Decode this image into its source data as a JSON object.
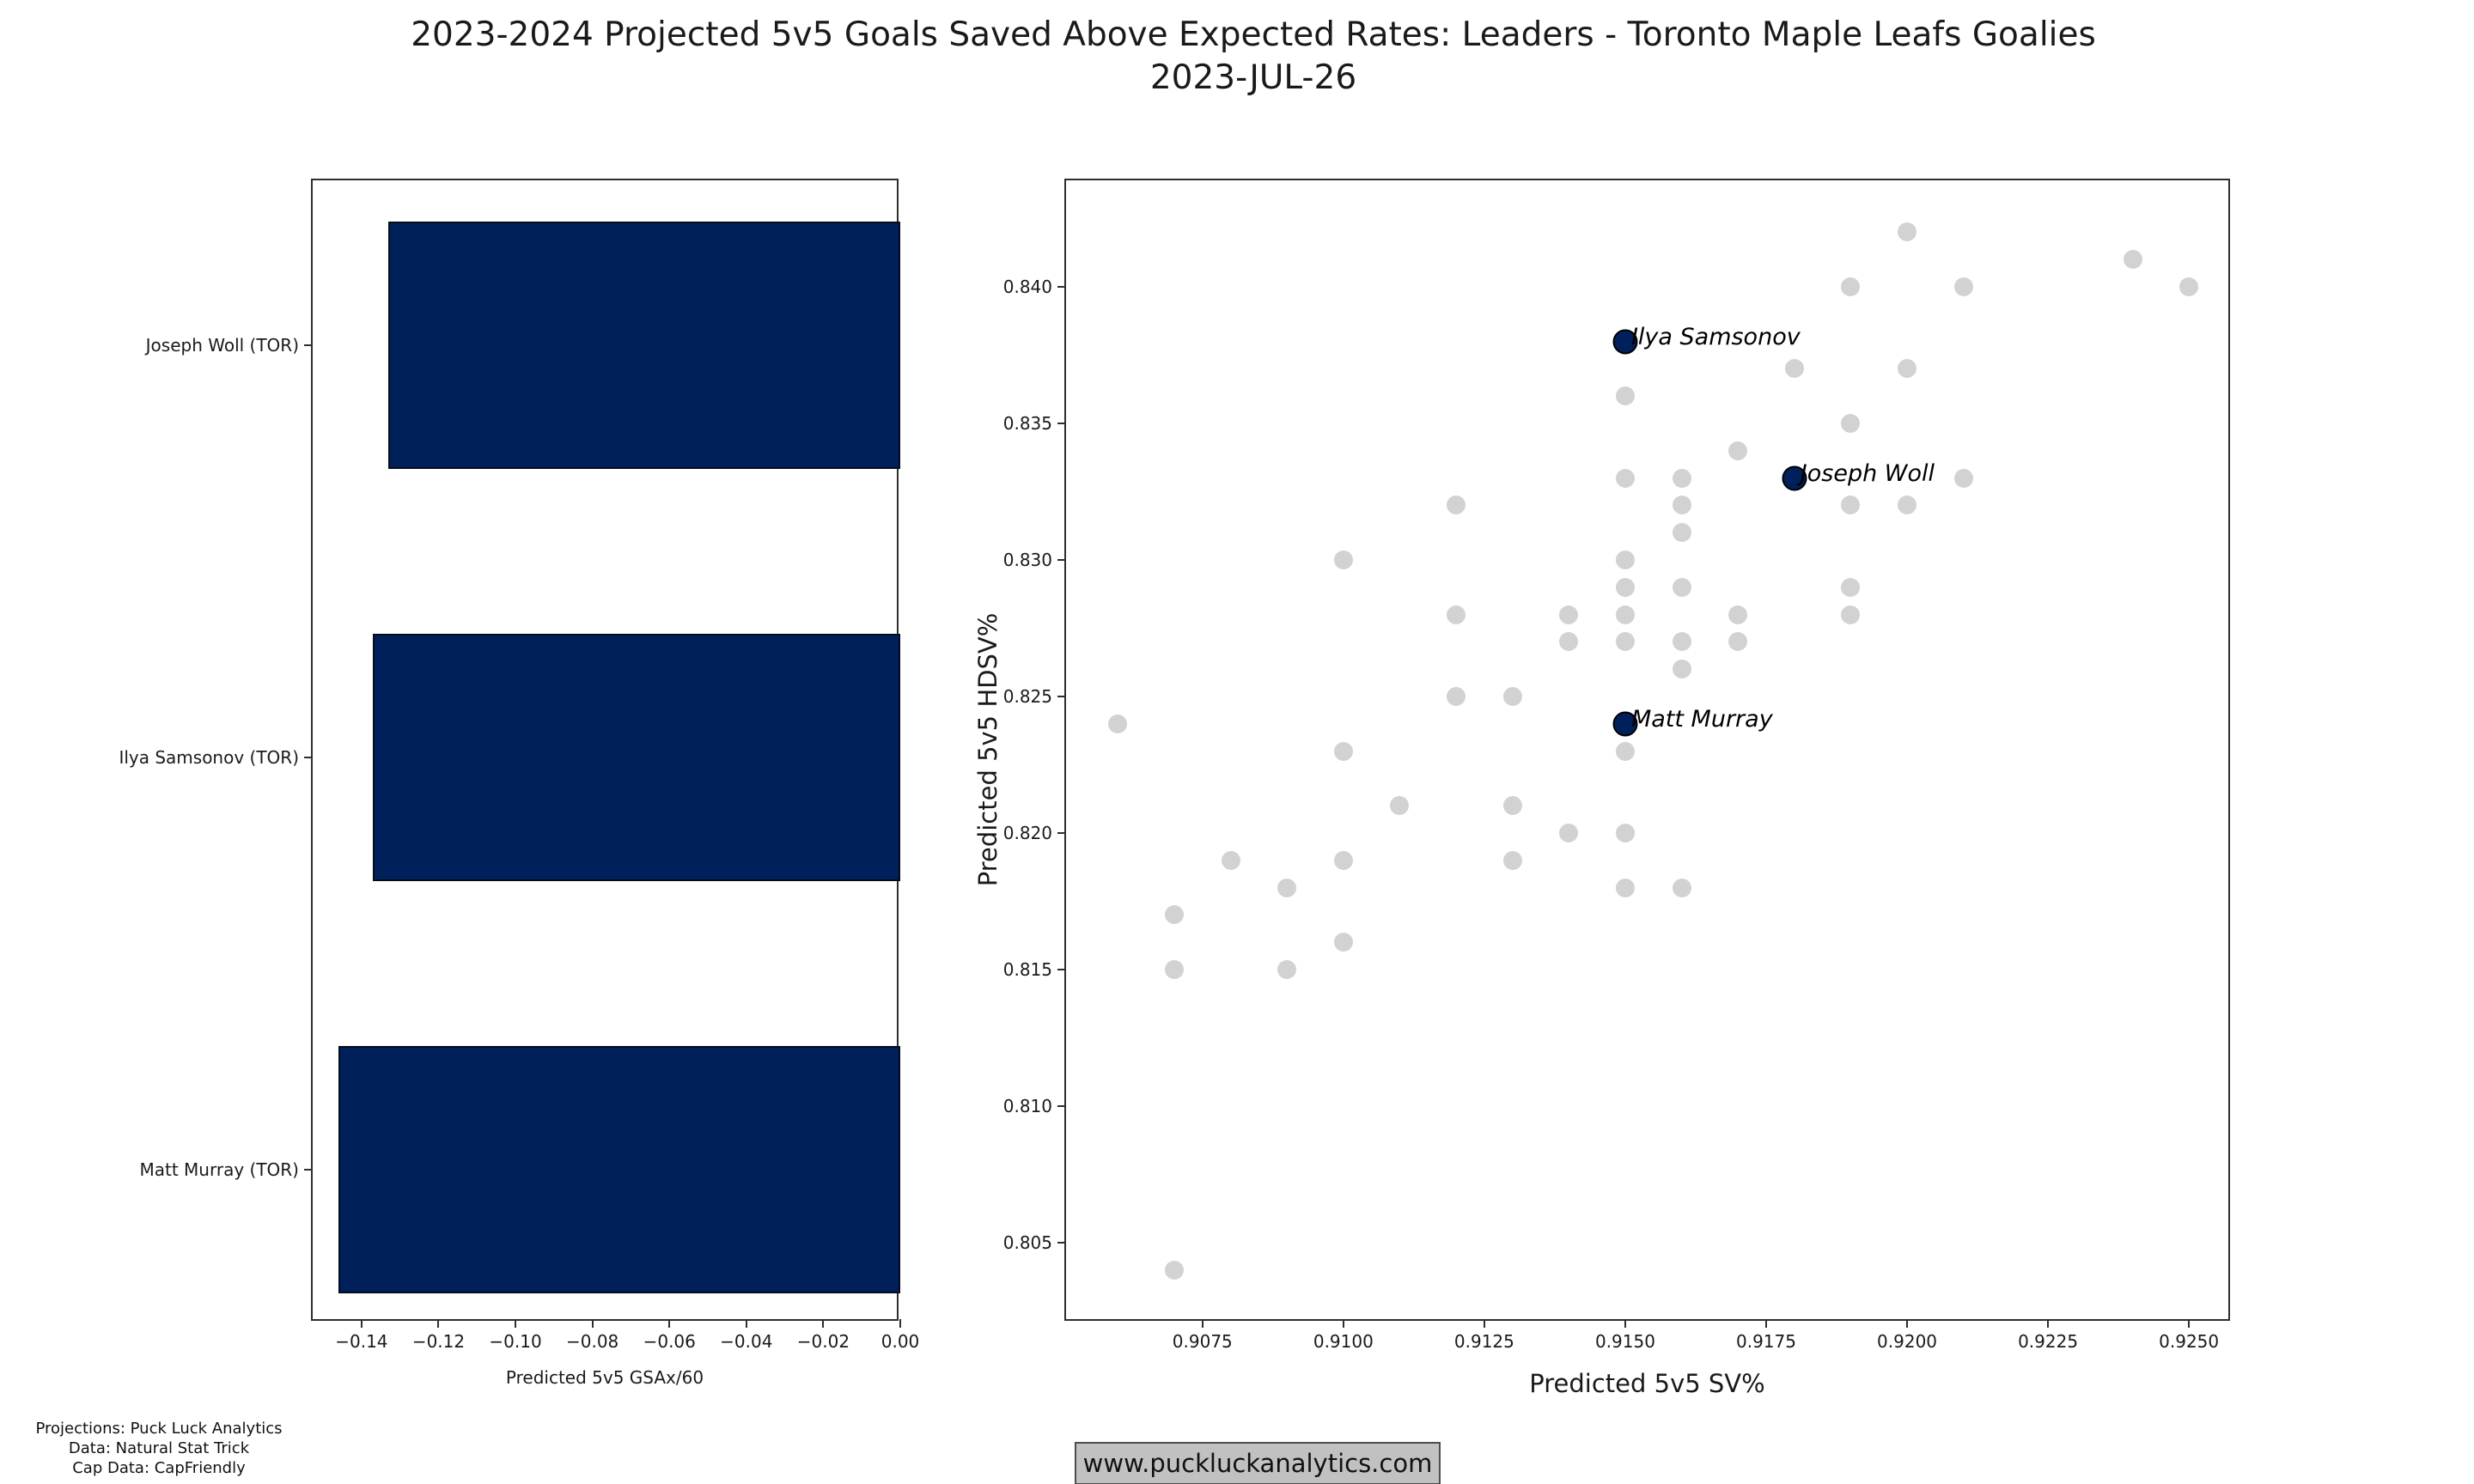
{
  "title": {
    "line1": "2023-2024 Projected 5v5 Goals Saved Above Expected Rates: Leaders - Toronto Maple Leafs Goalies",
    "line2": "2023-JUL-26"
  },
  "footer": {
    "lines": [
      "Projections: Puck Luck Analytics",
      "Data: Natural Stat Trick",
      "Cap Data: CapFriendly"
    ]
  },
  "watermark": {
    "text": "www.puckluckanalytics.com"
  },
  "colors": {
    "navy": "#00205b",
    "gray_dot": "#d2d2d2",
    "spine": "#2e2e2e",
    "watermark_bg": "#c1c1c1",
    "watermark_border": "#4d4d4d"
  },
  "chart_data": [
    {
      "type": "bar",
      "orientation": "horizontal",
      "xlabel": "Predicted 5v5 GSAx/60",
      "ylabel": "",
      "xlim": [
        -0.1527,
        0
      ],
      "grid": false,
      "bar_color": "#00205b",
      "categories": [
        "Joseph Woll (TOR)",
        "Ilya Samsonov (TOR)",
        "Matt Murray (TOR)"
      ],
      "values": [
        -0.133,
        -0.137,
        -0.146
      ],
      "xticks": [
        {
          "v": -0.14,
          "label": "−0.14"
        },
        {
          "v": -0.12,
          "label": "−0.12"
        },
        {
          "v": -0.1,
          "label": "−0.10"
        },
        {
          "v": -0.08,
          "label": "−0.08"
        },
        {
          "v": -0.06,
          "label": "−0.06"
        },
        {
          "v": -0.04,
          "label": "−0.04"
        },
        {
          "v": -0.02,
          "label": "−0.02"
        },
        {
          "v": 0.0,
          "label": "0.00"
        }
      ]
    },
    {
      "type": "scatter",
      "xlabel": "Predicted 5v5 SV%",
      "ylabel": "Predicted 5v5 HDSV%",
      "xlim": [
        0.90508,
        0.92576
      ],
      "ylim": [
        0.80208,
        0.8439
      ],
      "grid": false,
      "point_color_background": "#d2d2d2",
      "point_color_highlight": "#00205b",
      "xticks": [
        {
          "v": 0.9075,
          "label": "0.9075"
        },
        {
          "v": 0.91,
          "label": "0.9100"
        },
        {
          "v": 0.9125,
          "label": "0.9125"
        },
        {
          "v": 0.915,
          "label": "0.9150"
        },
        {
          "v": 0.9175,
          "label": "0.9175"
        },
        {
          "v": 0.92,
          "label": "0.9200"
        },
        {
          "v": 0.9225,
          "label": "0.9225"
        },
        {
          "v": 0.925,
          "label": "0.9250"
        }
      ],
      "yticks": [
        {
          "v": 0.84,
          "label": "0.840"
        },
        {
          "v": 0.835,
          "label": "0.835"
        },
        {
          "v": 0.83,
          "label": "0.830"
        },
        {
          "v": 0.825,
          "label": "0.825"
        },
        {
          "v": 0.82,
          "label": "0.820"
        },
        {
          "v": 0.815,
          "label": "0.815"
        },
        {
          "v": 0.81,
          "label": "0.810"
        },
        {
          "v": 0.805,
          "label": "0.805"
        }
      ],
      "labeled_points": [
        {
          "name": "Ilya Samsonov",
          "x": 0.915,
          "y": 0.838
        },
        {
          "name": "Joseph Woll",
          "x": 0.918,
          "y": 0.833
        },
        {
          "name": "Matt Murray",
          "x": 0.915,
          "y": 0.824
        }
      ],
      "background_points": [
        [
          0.906,
          0.824
        ],
        [
          0.907,
          0.817
        ],
        [
          0.907,
          0.815
        ],
        [
          0.907,
          0.804
        ],
        [
          0.908,
          0.819
        ],
        [
          0.909,
          0.818
        ],
        [
          0.909,
          0.815
        ],
        [
          0.91,
          0.83
        ],
        [
          0.91,
          0.823
        ],
        [
          0.91,
          0.819
        ],
        [
          0.91,
          0.816
        ],
        [
          0.911,
          0.821
        ],
        [
          0.912,
          0.832
        ],
        [
          0.912,
          0.828
        ],
        [
          0.912,
          0.825
        ],
        [
          0.913,
          0.825
        ],
        [
          0.913,
          0.821
        ],
        [
          0.913,
          0.819
        ],
        [
          0.914,
          0.828
        ],
        [
          0.914,
          0.827
        ],
        [
          0.914,
          0.82
        ],
        [
          0.915,
          0.836
        ],
        [
          0.915,
          0.833
        ],
        [
          0.915,
          0.83
        ],
        [
          0.915,
          0.829
        ],
        [
          0.915,
          0.828
        ],
        [
          0.915,
          0.827
        ],
        [
          0.915,
          0.823
        ],
        [
          0.915,
          0.82
        ],
        [
          0.915,
          0.818
        ],
        [
          0.916,
          0.833
        ],
        [
          0.916,
          0.832
        ],
        [
          0.916,
          0.831
        ],
        [
          0.916,
          0.829
        ],
        [
          0.916,
          0.827
        ],
        [
          0.916,
          0.826
        ],
        [
          0.916,
          0.818
        ],
        [
          0.917,
          0.834
        ],
        [
          0.917,
          0.828
        ],
        [
          0.917,
          0.827
        ],
        [
          0.918,
          0.837
        ],
        [
          0.919,
          0.84
        ],
        [
          0.919,
          0.835
        ],
        [
          0.919,
          0.832
        ],
        [
          0.919,
          0.829
        ],
        [
          0.919,
          0.828
        ],
        [
          0.92,
          0.842
        ],
        [
          0.92,
          0.837
        ],
        [
          0.92,
          0.832
        ],
        [
          0.921,
          0.84
        ],
        [
          0.921,
          0.833
        ],
        [
          0.924,
          0.841
        ],
        [
          0.925,
          0.84
        ]
      ]
    }
  ]
}
